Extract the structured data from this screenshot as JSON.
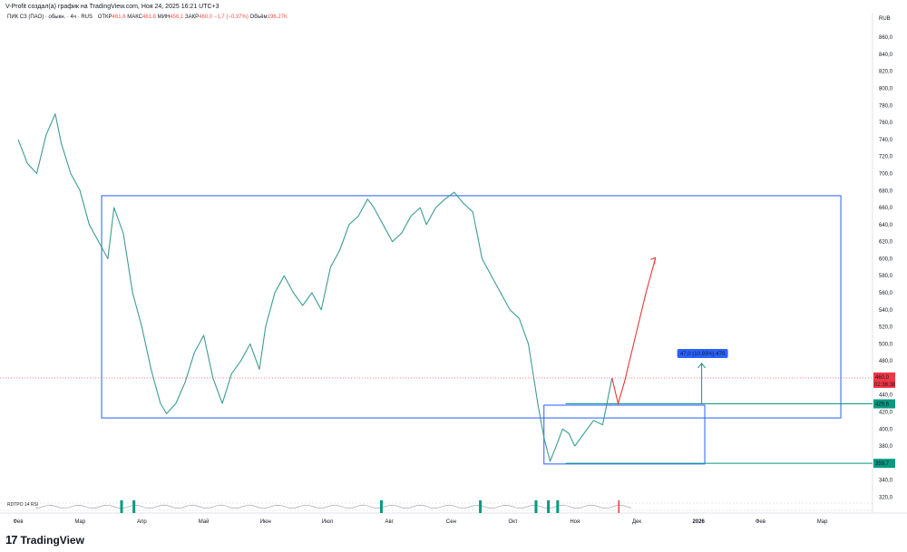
{
  "header": {
    "text": "V-Profit создал(а) график на TradingView.com, Ноя 24, 2025 16:21 UTC+3"
  },
  "legend": {
    "symbol": "ПИК СЗ (ПАО) · обыкн. · 4ч · RUS",
    "open_label": "ОТКР",
    "open": "461,6",
    "high_label": "МАКС",
    "high": "461,8",
    "low_label": "МИН",
    "low": "456,1",
    "close_label": "ЗАКР",
    "close": "460,0",
    "change": "−1,7 (−0,37%)",
    "volume_label": "Объём",
    "volume": "196,27K"
  },
  "footer": {
    "logo_icon": "tradingview-logo-icon",
    "logo_glyph": "17",
    "brand": "TradingView"
  },
  "chart_data": {
    "type": "line",
    "currency": "RUB",
    "x_ticks": [
      "Фев",
      "Мар",
      "Апр",
      "Май",
      "Июн",
      "Июл",
      "Авг",
      "Сен",
      "Окт",
      "Ноя",
      "Дек",
      "2026",
      "Фев",
      "Мар"
    ],
    "y_ticks": [
      "320,0",
      "340,0",
      "360,0",
      "380,0",
      "400,0",
      "420,0",
      "440,0",
      "460,0",
      "480,0",
      "500,0",
      "520,0",
      "540,0",
      "560,0",
      "580,0",
      "600,0",
      "620,0",
      "640,0",
      "660,0",
      "680,0",
      "700,0",
      "720,0",
      "740,0",
      "760,0",
      "780,0",
      "800,0",
      "820,0",
      "840,0",
      "860,0"
    ],
    "ylim": [
      312,
      874
    ],
    "price_series": {
      "x_month_index": [
        0.0,
        0.15,
        0.3,
        0.45,
        0.6,
        0.7,
        0.85,
        1.0,
        1.15,
        1.3,
        1.45,
        1.55,
        1.7,
        1.85,
        2.0,
        2.15,
        2.3,
        2.4,
        2.55,
        2.7,
        2.85,
        3.0,
        3.15,
        3.3,
        3.45,
        3.6,
        3.75,
        3.9,
        4.0,
        4.15,
        4.3,
        4.45,
        4.6,
        4.75,
        4.9,
        5.05,
        5.2,
        5.35,
        5.5,
        5.65,
        5.75,
        5.9,
        6.05,
        6.2,
        6.35,
        6.5,
        6.6,
        6.75,
        6.9,
        7.05,
        7.2,
        7.35,
        7.5,
        7.65,
        7.8,
        7.95,
        8.1,
        8.25,
        8.4,
        8.5,
        8.6,
        8.7,
        8.8,
        8.9,
        9.0,
        9.15,
        9.3,
        9.45,
        9.6
      ],
      "y": [
        740,
        712,
        700,
        745,
        770,
        735,
        700,
        680,
        640,
        620,
        600,
        660,
        630,
        560,
        520,
        470,
        430,
        418,
        430,
        455,
        490,
        510,
        460,
        430,
        465,
        480,
        500,
        470,
        520,
        560,
        580,
        560,
        545,
        560,
        540,
        590,
        610,
        640,
        650,
        670,
        660,
        640,
        620,
        630,
        650,
        660,
        640,
        660,
        670,
        678,
        665,
        655,
        600,
        580,
        560,
        540,
        530,
        500,
        430,
        390,
        362,
        380,
        400,
        395,
        380,
        395,
        410,
        405,
        460
      ]
    },
    "projection": {
      "x_month_index": [
        9.6,
        9.7,
        9.8,
        9.95,
        10.15,
        10.3
      ],
      "y": [
        460,
        430,
        455,
        500,
        560,
        600
      ]
    },
    "level_lines": [
      {
        "label": "429,6",
        "value": 429.6,
        "color": "#089981"
      },
      {
        "label": "359,7",
        "value": 359.7,
        "color": "#089981"
      }
    ],
    "current_price": {
      "label": "460,0",
      "timer": "02:38:38",
      "value": 460.0,
      "color": "#f23645"
    },
    "measure_label": "47,0 (10,93%) 470",
    "ranges": [
      {
        "name": "big-range-box",
        "x0_month_index": 1.35,
        "x1_month_index": 13.3,
        "y_top": 674,
        "y_bottom": 413
      },
      {
        "name": "small-range-box",
        "x0_month_index": 8.5,
        "x1_month_index": 11.1,
        "y_top": 428,
        "y_bottom": 359
      }
    ],
    "measure_arrow": {
      "x_month_index": 11.05,
      "y_from": 429.6,
      "y_to": 477
    },
    "indicator": {
      "label": "RDTPO 14 RSI",
      "green_signals_month_index": [
        1.65,
        1.85,
        5.85,
        7.45,
        8.35,
        8.55,
        8.7
      ],
      "red_signals_month_index": [
        9.7
      ]
    },
    "grid": false
  }
}
